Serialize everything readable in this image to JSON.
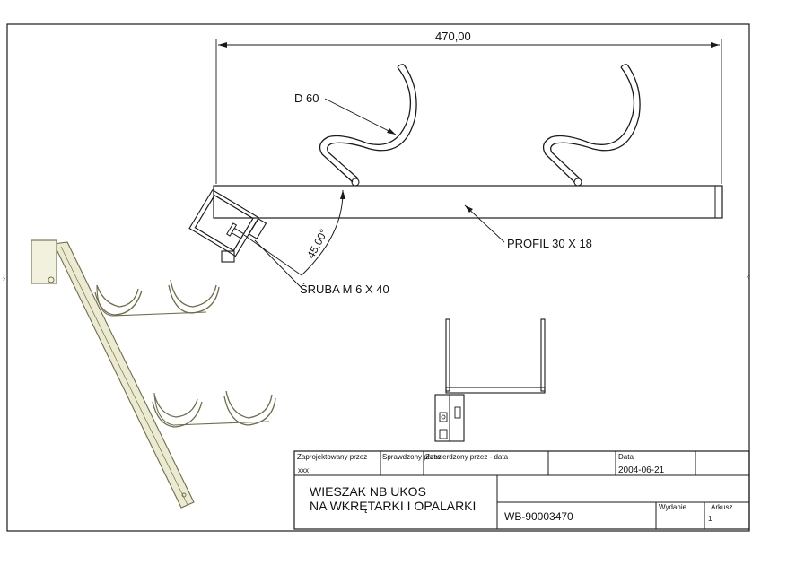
{
  "drawing": {
    "dimension_top": "470,00",
    "label_diameter": "D 60",
    "label_profile": "PROFIL 30 X 18",
    "label_screw": "ŚRUBA M 6 X 40",
    "label_angle": "45,00°"
  },
  "title_block": {
    "designed_by_label": "Zaprojektowany przez",
    "designed_by_value": "xxx",
    "checked_by_label": "Sprawdzony przez",
    "approved_by_label": "Zatwierdzony przez - data",
    "date_label": "Data",
    "date_value": "2004-06-21",
    "title_line1": "WIESZAK NB UKOS",
    "title_line2": "NA WKRĘTARKI I OPALARKI",
    "drawing_number": "WB-90003470",
    "edition_label": "Wydanie",
    "sheet_label": "Arkusz",
    "sheet_value": "1"
  }
}
